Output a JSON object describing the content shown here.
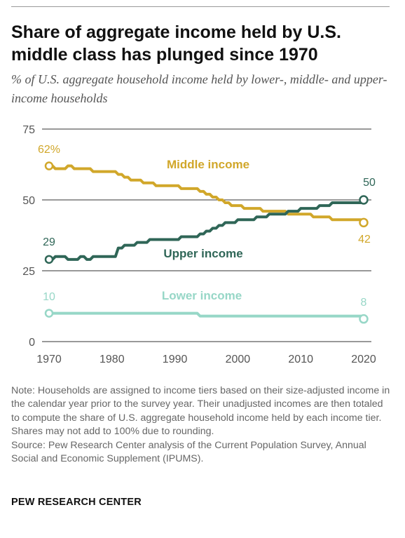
{
  "title": "Share of aggregate income held by U.S. middle class has plunged since 1970",
  "subtitle": "% of U.S. aggregate household income held by lower-, middle- and upper-income households",
  "note": "Note: Households are assigned to income tiers based on their size-adjusted income in the calendar year prior to the survey year. Their unadjusted incomes are then totaled to compute the share of U.S. aggregate household income held by each income tier. Shares may not add to 100% due to rounding.",
  "source": "Source: Pew Research Center analysis of the Current Population Survey, Annual Social and Economic Supplement (IPUMS).",
  "brand": "PEW RESEARCH CENTER",
  "colors": {
    "middle": "#d1a72a",
    "upper": "#2f6657",
    "lower": "#97d7c7",
    "grid": "#333333",
    "axis_text": "#555555"
  },
  "chart_data": {
    "type": "line",
    "title": "Share of aggregate income held by U.S. middle class has plunged since 1970",
    "subtitle": "% of U.S. aggregate household income held by lower-, middle- and upper-income households",
    "xlabel": "",
    "ylabel": "",
    "xlim": [
      1970,
      2020
    ],
    "ylim": [
      0,
      75
    ],
    "yticks": [
      0,
      25,
      50,
      75
    ],
    "xticks": [
      1970,
      1980,
      1990,
      2000,
      2010,
      2020
    ],
    "grid": "horizontal",
    "x": [
      1970,
      1971,
      1972,
      1973,
      1974,
      1975,
      1976,
      1977,
      1978,
      1979,
      1980,
      1981,
      1982,
      1983,
      1984,
      1985,
      1986,
      1987,
      1988,
      1989,
      1990,
      1991,
      1992,
      1993,
      1994,
      1995,
      1996,
      1997,
      1998,
      1999,
      2000,
      2001,
      2002,
      2003,
      2004,
      2005,
      2006,
      2007,
      2008,
      2009,
      2010,
      2011,
      2012,
      2013,
      2014,
      2015,
      2016,
      2017,
      2018,
      2019,
      2020
    ],
    "series": [
      {
        "name": "Middle income",
        "values": [
          62,
          61,
          61,
          62,
          61,
          61,
          61,
          60,
          60,
          60,
          60,
          59,
          58,
          57,
          57,
          56,
          56,
          55,
          55,
          55,
          55,
          54,
          54,
          54,
          53,
          52,
          51,
          50,
          49,
          48,
          48,
          47,
          47,
          47,
          46,
          46,
          46,
          46,
          45,
          45,
          45,
          45,
          44,
          44,
          44,
          43,
          43,
          43,
          43,
          43,
          42
        ],
        "start_label": "62%",
        "end_label": "42"
      },
      {
        "name": "Upper income",
        "values": [
          29,
          30,
          30,
          29,
          29,
          30,
          29,
          30,
          30,
          30,
          30,
          33,
          34,
          34,
          35,
          35,
          36,
          36,
          36,
          36,
          36,
          37,
          37,
          37,
          38,
          39,
          40,
          41,
          42,
          42,
          43,
          43,
          43,
          44,
          44,
          45,
          45,
          45,
          46,
          46,
          47,
          47,
          47,
          48,
          48,
          49,
          49,
          49,
          49,
          49,
          50
        ],
        "start_label": "29",
        "end_label": "50"
      },
      {
        "name": "Lower income",
        "values": [
          10,
          10,
          10,
          10,
          10,
          10,
          10,
          10,
          10,
          10,
          10,
          10,
          10,
          10,
          10,
          10,
          10,
          10,
          10,
          10,
          10,
          10,
          10,
          10,
          9,
          9,
          9,
          9,
          9,
          9,
          9,
          9,
          9,
          9,
          9,
          9,
          9,
          9,
          9,
          9,
          9,
          9,
          9,
          9,
          9,
          9,
          9,
          9,
          9,
          9,
          8
        ],
        "start_label": "10",
        "end_label": "8"
      }
    ]
  }
}
